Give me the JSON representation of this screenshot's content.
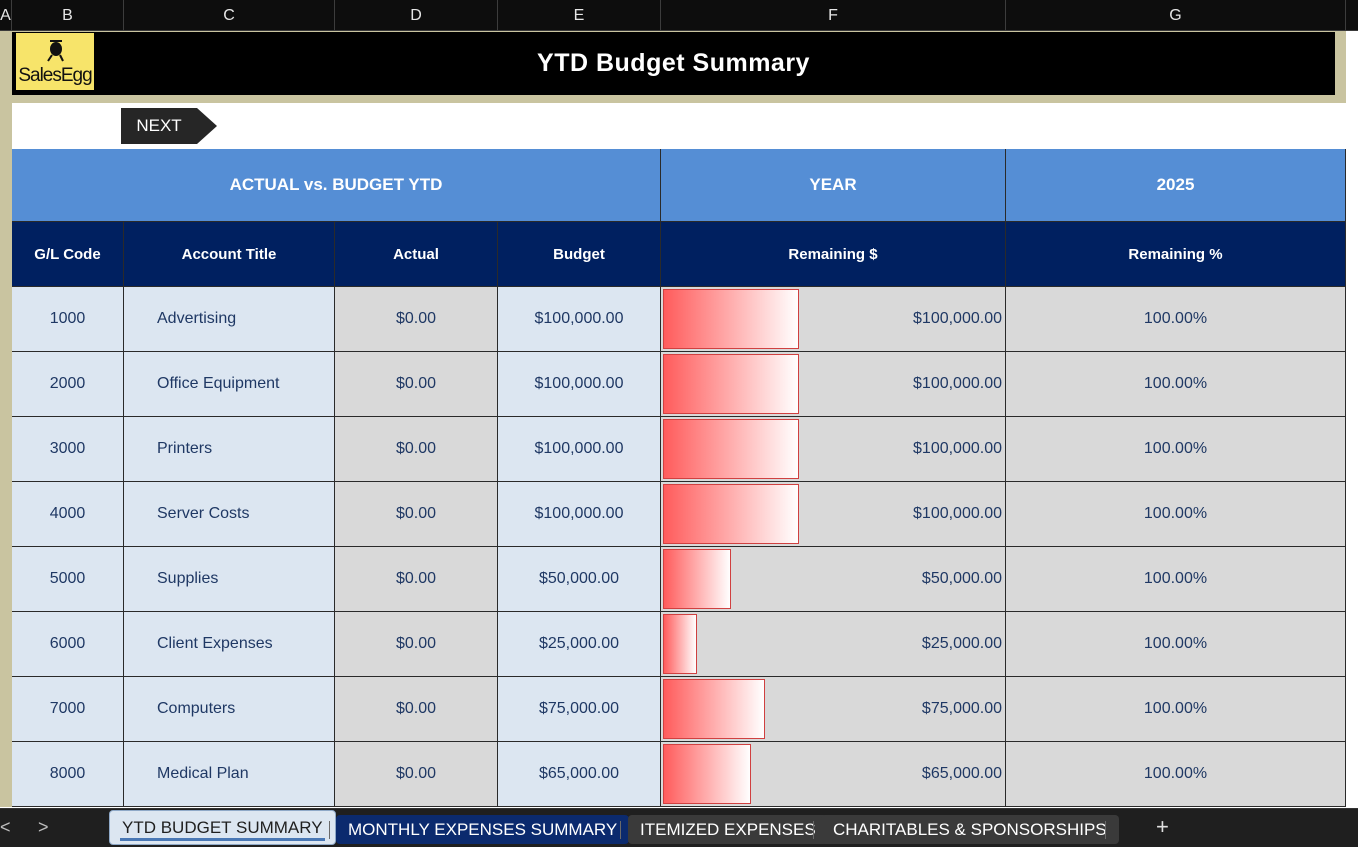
{
  "column_headers": [
    "A",
    "B",
    "C",
    "D",
    "E",
    "F",
    "G"
  ],
  "title": "YTD Budget Summary",
  "logo": {
    "text": "SalesEgg",
    "accent": "#f7e46a"
  },
  "next_button": {
    "label": "NEXT"
  },
  "table": {
    "header1": {
      "section": "ACTUAL vs. BUDGET YTD",
      "year_label": "YEAR",
      "year_value": "2025"
    },
    "header2": [
      "G/L Code",
      "Account Title",
      "Actual",
      "Budget",
      "Remaining $",
      "Remaining %"
    ],
    "rows": [
      {
        "code": "1000",
        "title": "Advertising",
        "actual": "$0.00",
        "budget": "$100,000.00",
        "remaining": "$100,000.00",
        "remaining_pct": "100.00%",
        "remaining_value": 100000
      },
      {
        "code": "2000",
        "title": "Office Equipment",
        "actual": "$0.00",
        "budget": "$100,000.00",
        "remaining": "$100,000.00",
        "remaining_pct": "100.00%",
        "remaining_value": 100000
      },
      {
        "code": "3000",
        "title": "Printers",
        "actual": "$0.00",
        "budget": "$100,000.00",
        "remaining": "$100,000.00",
        "remaining_pct": "100.00%",
        "remaining_value": 100000
      },
      {
        "code": "4000",
        "title": "Server Costs",
        "actual": "$0.00",
        "budget": "$100,000.00",
        "remaining": "$100,000.00",
        "remaining_pct": "100.00%",
        "remaining_value": 100000
      },
      {
        "code": "5000",
        "title": "Supplies",
        "actual": "$0.00",
        "budget": "$50,000.00",
        "remaining": "$50,000.00",
        "remaining_pct": "100.00%",
        "remaining_value": 50000
      },
      {
        "code": "6000",
        "title": "Client Expenses",
        "actual": "$0.00",
        "budget": "$25,000.00",
        "remaining": "$25,000.00",
        "remaining_pct": "100.00%",
        "remaining_value": 25000
      },
      {
        "code": "7000",
        "title": "Computers",
        "actual": "$0.00",
        "budget": "$75,000.00",
        "remaining": "$75,000.00",
        "remaining_pct": "100.00%",
        "remaining_value": 75000
      },
      {
        "code": "8000",
        "title": "Medical Plan",
        "actual": "$0.00",
        "budget": "$65,000.00",
        "remaining": "$65,000.00",
        "remaining_pct": "100.00%",
        "remaining_value": 65000
      }
    ]
  },
  "sheet_tabs": {
    "active": "YTD BUDGET SUMMARY",
    "tabs": [
      "YTD BUDGET SUMMARY",
      "MONTHLY EXPENSES SUMMARY",
      "ITEMIZED EXPENSES",
      "CHARITABLES & SPONSORSHIPS"
    ],
    "add_label": "+",
    "prev_label": "<",
    "next_label": ">"
  },
  "colors": {
    "header_light_blue": "#558ed5",
    "header_navy": "#002060",
    "row_light": "#dce6f1",
    "row_gray": "#d9d9d9",
    "databar_red": "#ff5c5c",
    "text_navy": "#1f3864"
  },
  "icons": {
    "logo": "egg-mascot-icon",
    "next": "arrow-right-icon",
    "tab_prev": "chevron-left-icon",
    "tab_next": "chevron-right-icon",
    "add_sheet": "plus-icon"
  }
}
